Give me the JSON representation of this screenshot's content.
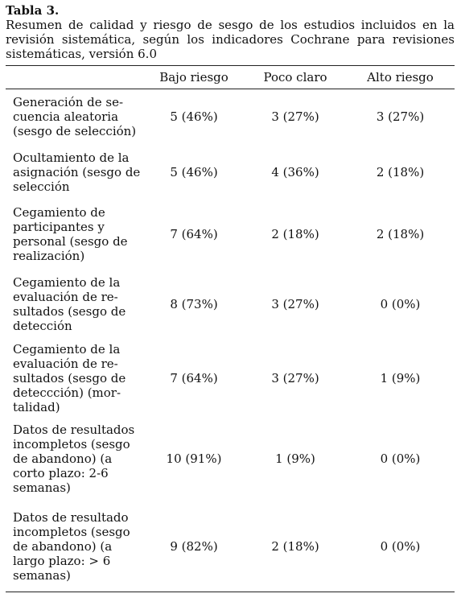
{
  "caption": {
    "label": "Tabla 3.",
    "text": "Resumen de calidad y riesgo de sesgo de los estudios incluidos en la revisión sistemática, según los indicadores Cochrane para revisiones sistemáticas, versión 6.0"
  },
  "table": {
    "headers": [
      "",
      "Bajo riesgo",
      "Poco claro",
      "Alto riesgo"
    ],
    "rows": [
      {
        "label_lines": [
          "Generación de se-",
          "cuencia aleatoria",
          "(sesgo de selección)"
        ],
        "values": [
          "5 (46%)",
          "3 (27%)",
          "3 (27%)"
        ]
      },
      {
        "label_lines": [
          "Ocultamiento de la",
          "asignación (sesgo de",
          "selección"
        ],
        "values": [
          "5 (46%)",
          "4 (36%)",
          "2 (18%)"
        ]
      },
      {
        "label_lines": [
          "Cegamiento de",
          "participantes y",
          "personal (sesgo de",
          "realización)"
        ],
        "values": [
          "7 (64%)",
          "2 (18%)",
          "2 (18%)"
        ]
      },
      {
        "label_lines": [
          "Cegamiento de la",
          "evaluación de re-",
          "sultados (sesgo de",
          "detección"
        ],
        "values": [
          "8 (73%)",
          "3 (27%)",
          "0 (0%)"
        ]
      },
      {
        "label_lines": [
          "Cegamiento de la",
          "evaluación de re-",
          "sultados (sesgo de",
          "deteccción) (mor-",
          "talidad)"
        ],
        "values": [
          "7 (64%)",
          "3 (27%)",
          "1 (9%)"
        ]
      },
      {
        "label_lines": [
          "Datos de resultados",
          "incompletos (sesgo",
          "de abandono) (a",
          "corto plazo: 2-6",
          "semanas)"
        ],
        "values": [
          "10 (91%)",
          "1 (9%)",
          "0 (0%)"
        ]
      },
      {
        "label_lines": [
          "Datos de resultado",
          "incompletos (sesgo",
          "de abandono) (a",
          "largo plazo: > 6",
          "semanas)"
        ],
        "values": [
          "9 (82%)",
          "2 (18%)",
          "0 (0%)"
        ]
      }
    ]
  }
}
